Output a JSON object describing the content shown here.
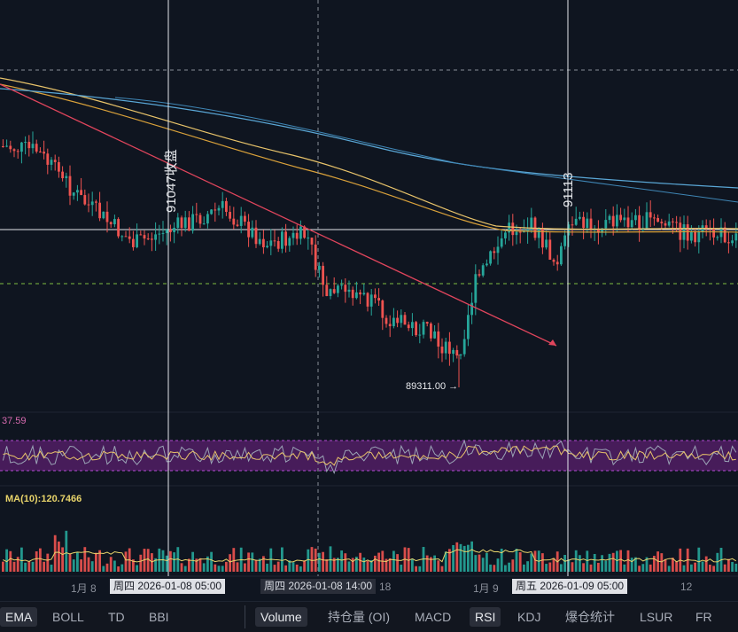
{
  "chart_data": {
    "type": "candlestick",
    "annotations": {
      "low_marker": "89311.00 →",
      "crosshair_1": "91047收盘",
      "crosshair_2": "91113"
    },
    "x_axis": {
      "labels": [
        "1月 8",
        "18",
        "1月 9",
        "12"
      ],
      "highlight_tags": [
        "周四 2026-01-08 05:00",
        "周四 2026-01-08 14:00",
        "周五 2026-01-09 05:00"
      ]
    },
    "price_pane": {
      "moving_averages": [
        {
          "color": "#e8c36a"
        },
        {
          "color": "#d9a13a"
        },
        {
          "color": "#5aa7d6"
        }
      ],
      "trendline": {
        "color": "#e0455c"
      },
      "up_color": "#26a69a",
      "down_color": "#ef5350"
    },
    "rsi_pane": {
      "label": "37.59",
      "band_color": "#5b1f6e"
    },
    "volume_pane": {
      "label": "MA(10):120.7466"
    }
  },
  "toolbar": {
    "items": [
      {
        "label": "EMA",
        "active": true
      },
      {
        "label": "BOLL",
        "active": false
      },
      {
        "label": "TD",
        "active": false
      },
      {
        "label": "BBI",
        "active": false
      },
      {
        "label": "Volume",
        "active": true
      },
      {
        "label": "持仓量 (OI)",
        "active": false
      },
      {
        "label": "MACD",
        "active": false
      },
      {
        "label": "RSI",
        "active": true
      },
      {
        "label": "KDJ",
        "active": false
      },
      {
        "label": "爆仓统计",
        "active": false
      },
      {
        "label": "LSUR",
        "active": false
      },
      {
        "label": "FR",
        "active": false
      }
    ]
  }
}
